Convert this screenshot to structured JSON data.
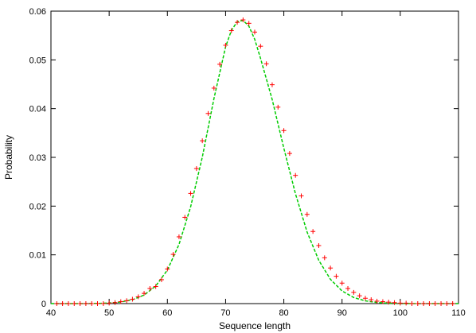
{
  "chart_data": {
    "type": "scatter",
    "title": "",
    "xlabel": "Sequence length",
    "ylabel": "Probability",
    "xlim": [
      40,
      110
    ],
    "ylim": [
      0,
      0.06
    ],
    "x_ticks": [
      "40",
      "50",
      "60",
      "70",
      "80",
      "90",
      "100",
      "110"
    ],
    "y_ticks": [
      "0",
      "0.01",
      "0.02",
      "0.03",
      "0.04",
      "0.05",
      "0.06"
    ],
    "grid": false,
    "legend": "none",
    "series": [
      {
        "style": "points",
        "marker": "+",
        "color": "#ff0000",
        "x": [
          41,
          42,
          43,
          44,
          45,
          46,
          47,
          48,
          49,
          50,
          51,
          52,
          53,
          54,
          55,
          56,
          57,
          58,
          59,
          60,
          61,
          62,
          63,
          64,
          65,
          66,
          67,
          68,
          69,
          70,
          71,
          72,
          73,
          74,
          75,
          76,
          77,
          78,
          79,
          80,
          81,
          82,
          83,
          84,
          85,
          86,
          87,
          88,
          89,
          90,
          91,
          92,
          93,
          94,
          95,
          96,
          97,
          98,
          99,
          100,
          101,
          102,
          103,
          104,
          105,
          106,
          107,
          108,
          109
        ],
        "y": [
          0,
          0,
          0,
          0,
          0,
          0,
          0,
          0,
          0,
          0.0001,
          0.0002,
          0.0004,
          0.0006,
          0.0009,
          0.0014,
          0.0021,
          0.0031,
          0.0035,
          0.0049,
          0.0071,
          0.0101,
          0.0137,
          0.0177,
          0.0226,
          0.0277,
          0.0334,
          0.039,
          0.0442,
          0.0491,
          0.053,
          0.056,
          0.0577,
          0.0582,
          0.0575,
          0.0557,
          0.0528,
          0.0492,
          0.0449,
          0.0403,
          0.0355,
          0.0308,
          0.0263,
          0.0221,
          0.0183,
          0.0148,
          0.0119,
          0.0094,
          0.0073,
          0.0056,
          0.0042,
          0.0031,
          0.0023,
          0.0016,
          0.0011,
          0.0008,
          0.0005,
          0.0004,
          0.0003,
          0.0002,
          0.0001,
          0.0001,
          0,
          0,
          0,
          0,
          0,
          0,
          0,
          0
        ]
      },
      {
        "style": "dashed-line",
        "color": "#00cc00",
        "x": [
          40,
          42,
          44,
          46,
          48,
          50,
          52,
          54,
          56,
          58,
          60,
          62,
          64,
          66,
          68,
          70,
          71,
          72,
          73,
          74,
          75,
          76,
          78,
          80,
          82,
          84,
          86,
          88,
          90,
          92,
          94,
          96,
          98,
          100,
          102,
          104,
          106,
          108,
          110
        ],
        "y": [
          0,
          0,
          0,
          1e-05,
          4e-05,
          0.00012,
          0.00033,
          0.00079,
          0.00175,
          0.00361,
          0.00688,
          0.01215,
          0.01988,
          0.03006,
          0.04207,
          0.05269,
          0.05605,
          0.05784,
          0.05809,
          0.05692,
          0.05423,
          0.05031,
          0.04188,
          0.03188,
          0.02252,
          0.01467,
          0.00888,
          0.00499,
          0.00259,
          0.00125,
          0.00056,
          0.00023,
          9e-05,
          3e-05,
          1e-05,
          0,
          0,
          0,
          0
        ]
      }
    ]
  }
}
